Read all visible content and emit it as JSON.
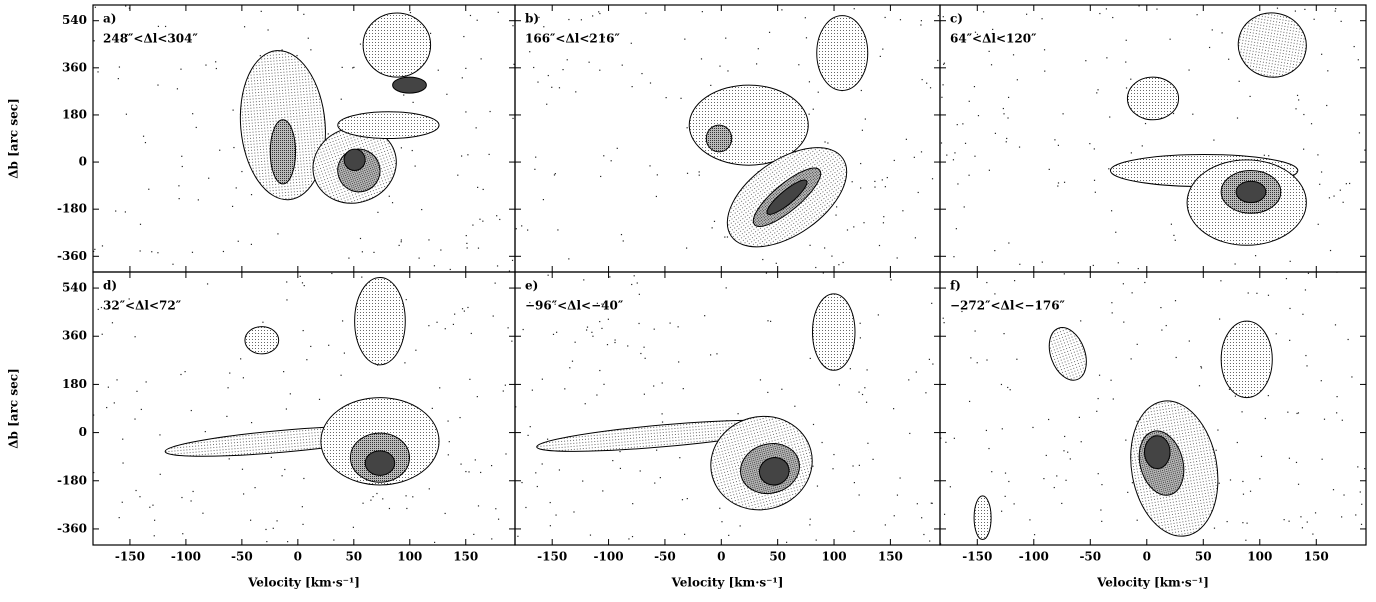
{
  "chart_data": [
    {
      "type": "contour",
      "panel": "a)",
      "title": "248″<Δl<304″",
      "ylabel": "Δb [arc sec]",
      "xlim": [
        -183,
        194
      ],
      "ylim": [
        -420,
        600
      ],
      "xticks": [
        -150,
        -100,
        -50,
        0,
        50,
        100,
        150
      ],
      "yticks": [
        -360,
        -180,
        0,
        180,
        360,
        540
      ]
    },
    {
      "type": "contour",
      "panel": "b)",
      "title": "166″<Δl<216″",
      "xlim": [
        -183,
        194
      ],
      "ylim": [
        -420,
        600
      ],
      "xticks": [
        -150,
        -100,
        -50,
        0,
        50,
        100,
        150
      ],
      "yticks": [
        -360,
        -180,
        0,
        180,
        360,
        540
      ]
    },
    {
      "type": "contour",
      "panel": "c)",
      "title": "64″<Δl<120″",
      "xlim": [
        -183,
        194
      ],
      "ylim": [
        -420,
        600
      ],
      "xticks": [
        -150,
        -100,
        -50,
        0,
        50,
        100,
        150
      ],
      "yticks": [
        -360,
        -180,
        0,
        180,
        360,
        540
      ]
    },
    {
      "type": "contour",
      "panel": "d)",
      "title": "32″<Δl<72″",
      "ylabel": "Δb [arc sec]",
      "xlabel": "Velocity [km·s⁻¹]",
      "xlim": [
        -183,
        194
      ],
      "ylim": [
        -420,
        600
      ],
      "xticks": [
        -150,
        -100,
        -50,
        0,
        50,
        100,
        150
      ],
      "yticks": [
        -360,
        -180,
        0,
        180,
        360,
        540
      ]
    },
    {
      "type": "contour",
      "panel": "e)",
      "title": "−96″<Δl<−40″",
      "xlabel": "Velocity [km·s⁻¹]",
      "xlim": [
        -183,
        194
      ],
      "ylim": [
        -420,
        600
      ],
      "xticks": [
        -150,
        -100,
        -50,
        0,
        50,
        100,
        150
      ],
      "yticks": [
        -360,
        -180,
        0,
        180,
        360,
        540
      ]
    },
    {
      "type": "contour",
      "panel": "f)",
      "title": "−272″<Δl<−176″",
      "xlabel": "Velocity [km·s⁻¹]",
      "xlim": [
        -183,
        194
      ],
      "ylim": [
        -420,
        600
      ],
      "xticks": [
        -150,
        -100,
        -50,
        0,
        50,
        100,
        150
      ],
      "yticks": [
        -360,
        -180,
        0,
        180,
        360,
        540
      ]
    }
  ]
}
